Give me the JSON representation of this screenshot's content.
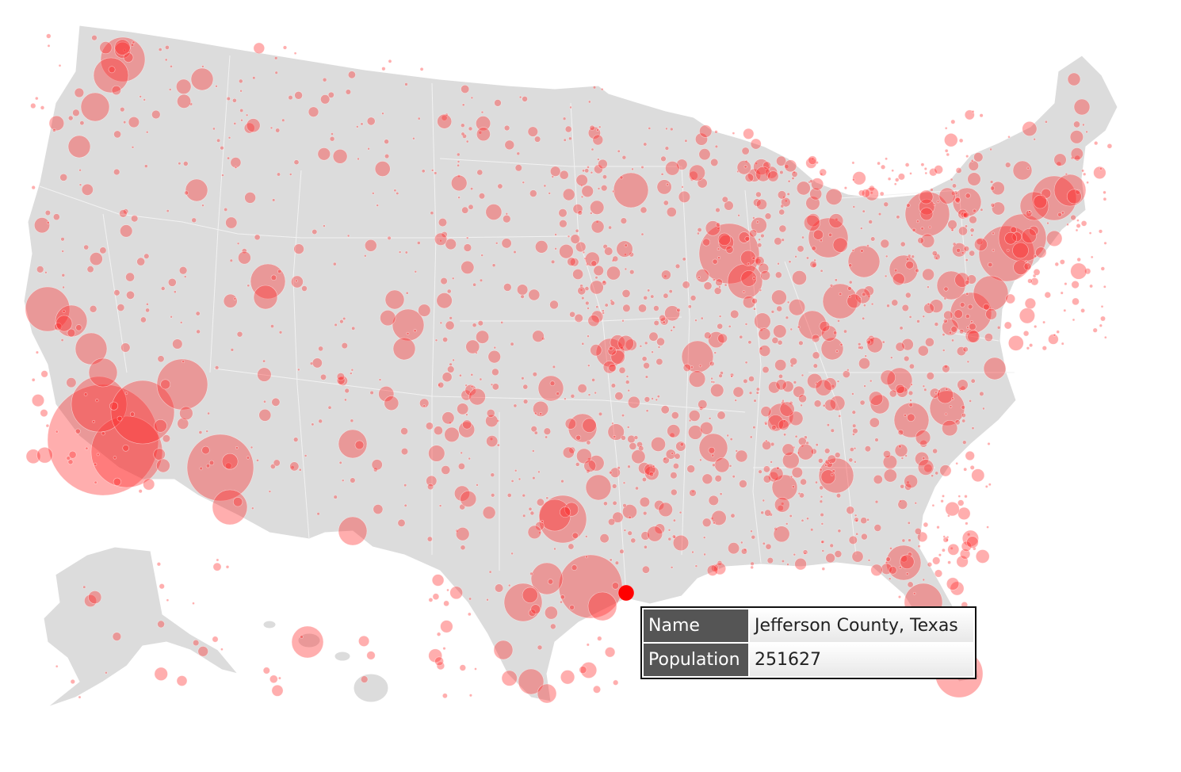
{
  "tooltip": {
    "rows": [
      {
        "key": "Name",
        "value": "Jefferson County, Texas"
      },
      {
        "key": "Population",
        "value": "251627"
      }
    ]
  },
  "colors": {
    "land": "#dcdcdc",
    "bubble": "#ff2b2b",
    "highlight": "#ff0000",
    "tooltip_key_bg": "#555555",
    "tooltip_border": "#111111"
  },
  "legend": {
    "shown": false
  }
}
